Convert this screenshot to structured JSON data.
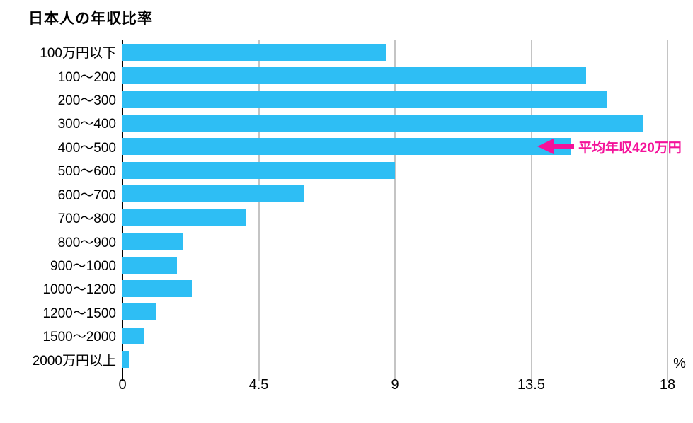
{
  "title": "日本人の年収比率",
  "colors": {
    "bar": "#2EBEF4",
    "annotation": "#F4129A",
    "gridline": "#C4C4C4",
    "axis_line": "#000000",
    "text": "#000000"
  },
  "chart_data": {
    "type": "bar",
    "orientation": "horizontal",
    "title": "日本人の年収比率",
    "categories": [
      "100万円以下",
      "100〜200",
      "200〜300",
      "300〜400",
      "400〜500",
      "500〜600",
      "600〜700",
      "700〜800",
      "800〜900",
      "900〜1000",
      "1000〜1200",
      "1200〜1500",
      "1500〜2000",
      "2000万円以上"
    ],
    "values": [
      8.7,
      15.3,
      16.0,
      17.2,
      14.8,
      9.0,
      6.0,
      4.1,
      2.0,
      1.8,
      2.3,
      1.1,
      0.7,
      0.2
    ],
    "xlabel": "%",
    "xlim": [
      0,
      18
    ],
    "xticks": [
      "0",
      "4.5",
      "9",
      "13.5",
      "18"
    ],
    "xtick_values": [
      0,
      4.5,
      9,
      13.5,
      18
    ],
    "grid": true,
    "legend": false,
    "annotation": {
      "text": "平均年収420万円",
      "target_category": "400〜500",
      "target_value": 14.8
    }
  }
}
